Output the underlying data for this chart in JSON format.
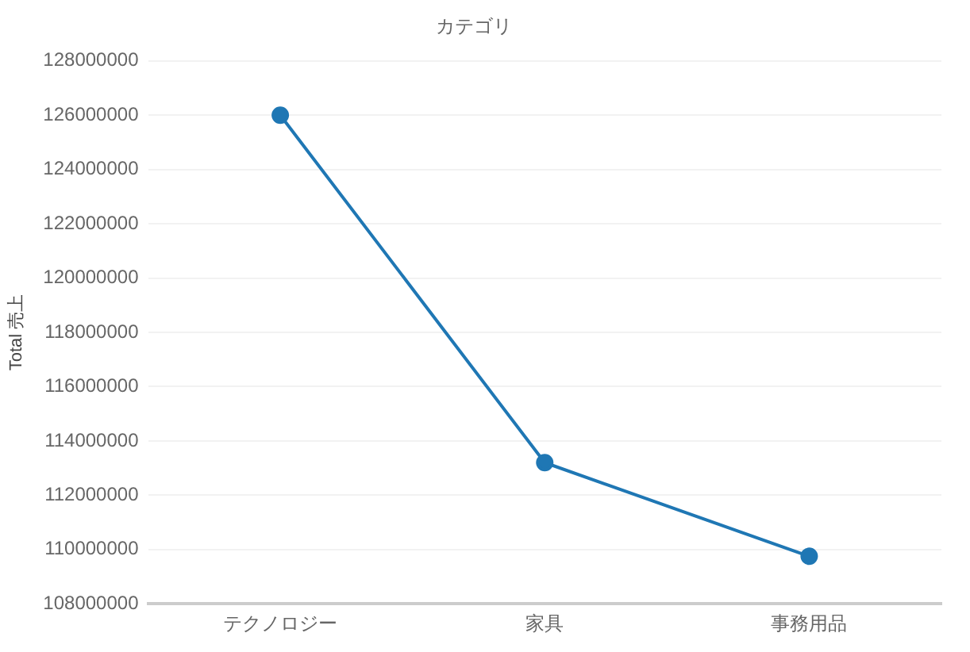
{
  "chart_data": {
    "type": "line",
    "title": "カテゴリ",
    "ylabel": "Total 売上",
    "categories": [
      "テクノロジー",
      "家具",
      "事務用品"
    ],
    "series": [
      {
        "color": "#1f77b4",
        "values": [
          126000000,
          113200000,
          109750000
        ]
      }
    ],
    "ylim": [
      108000000,
      128000000
    ],
    "yticks": [
      108000000,
      110000000,
      112000000,
      114000000,
      116000000,
      118000000,
      120000000,
      122000000,
      124000000,
      126000000,
      128000000
    ],
    "grid": "y",
    "marker": "circle",
    "line_style": "solid"
  }
}
